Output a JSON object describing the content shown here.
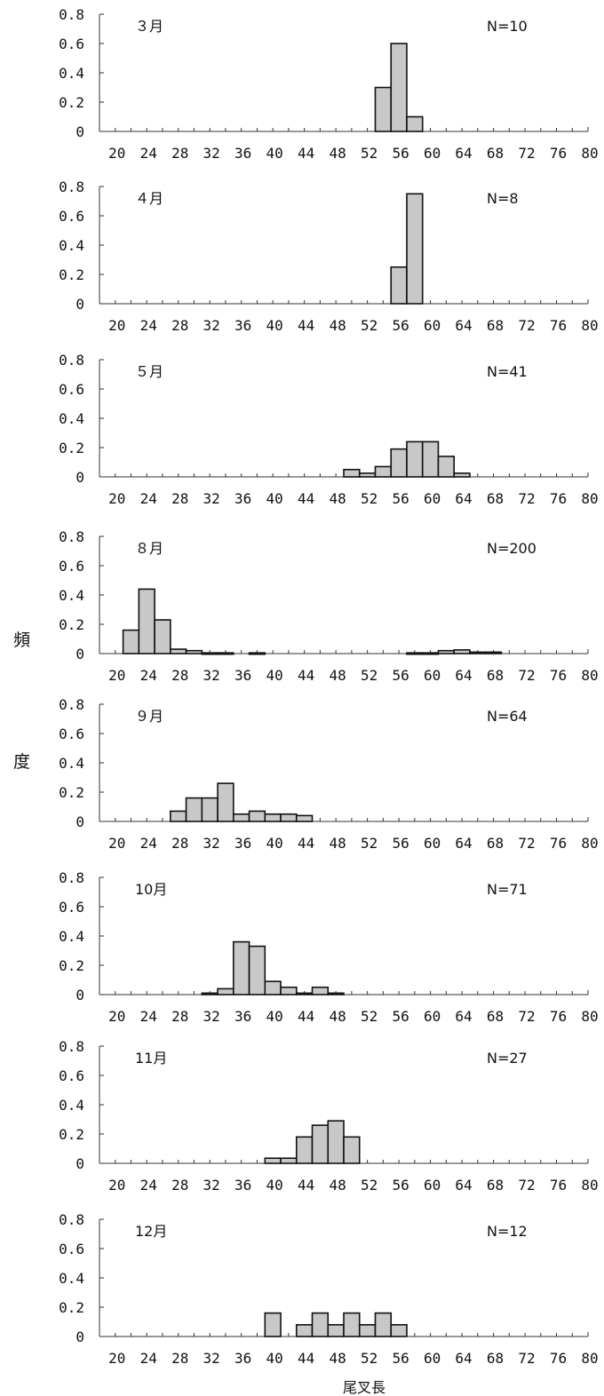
{
  "ylabel_chars": [
    "頻",
    "度"
  ],
  "xlabel": "尾叉長",
  "chart_data": [
    {
      "type": "bar",
      "month": "３月",
      "n": "N=10",
      "bins": [
        54,
        56,
        58
      ],
      "values": [
        0.3,
        0.6,
        0.1
      ]
    },
    {
      "type": "bar",
      "month": "４月",
      "n": "N=8",
      "bins": [
        56,
        58
      ],
      "values": [
        0.25,
        0.75
      ]
    },
    {
      "type": "bar",
      "month": "５月",
      "n": "N=41",
      "bins": [
        50,
        52,
        54,
        56,
        58,
        60,
        62,
        64
      ],
      "values": [
        0.05,
        0.025,
        0.07,
        0.19,
        0.24,
        0.24,
        0.14,
        0.025
      ]
    },
    {
      "type": "bar",
      "month": "８月",
      "n": "N=200",
      "bins": [
        22,
        24,
        26,
        28,
        30,
        32,
        34,
        38,
        58,
        60,
        62,
        64,
        66,
        68
      ],
      "values": [
        0.16,
        0.44,
        0.23,
        0.03,
        0.02,
        0.005,
        0.005,
        0.005,
        0.005,
        0.005,
        0.02,
        0.025,
        0.01,
        0.01
      ]
    },
    {
      "type": "bar",
      "month": "９月",
      "n": "N=64",
      "bins": [
        28,
        30,
        32,
        34,
        36,
        38,
        40,
        42,
        44
      ],
      "values": [
        0.07,
        0.16,
        0.16,
        0.26,
        0.05,
        0.07,
        0.05,
        0.05,
        0.04
      ]
    },
    {
      "type": "bar",
      "month": "10月",
      "n": "N=71",
      "bins": [
        32,
        34,
        36,
        38,
        40,
        42,
        44,
        46,
        48
      ],
      "values": [
        0.01,
        0.04,
        0.36,
        0.33,
        0.09,
        0.05,
        0.01,
        0.05,
        0.01
      ]
    },
    {
      "type": "bar",
      "month": "11月",
      "n": "N=27",
      "bins": [
        40,
        42,
        44,
        46,
        48,
        50
      ],
      "values": [
        0.035,
        0.035,
        0.18,
        0.26,
        0.29,
        0.18
      ]
    },
    {
      "type": "bar",
      "month": "12月",
      "n": "N=12",
      "bins": [
        40,
        44,
        46,
        48,
        50,
        52,
        54,
        56
      ],
      "values": [
        0.16,
        0.08,
        0.16,
        0.08,
        0.16,
        0.08,
        0.16,
        0.08
      ]
    }
  ],
  "shared_axes": {
    "xticks": [
      20,
      24,
      28,
      32,
      36,
      40,
      44,
      48,
      52,
      56,
      60,
      64,
      68,
      72,
      76,
      80
    ],
    "yticks": [
      0,
      0.2,
      0.4,
      0.6,
      0.8
    ],
    "ytick_labels": [
      "0",
      "0.2",
      "0.4",
      "0.6",
      "0.8"
    ],
    "xlim": [
      18,
      80
    ],
    "ylim": [
      0,
      0.8
    ],
    "bin_width": 2
  }
}
